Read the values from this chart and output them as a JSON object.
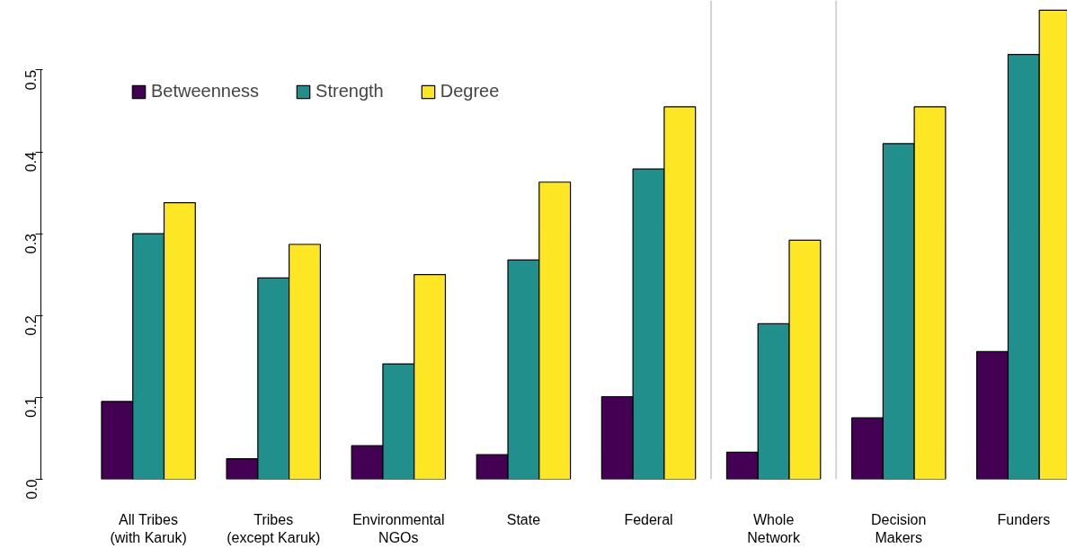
{
  "chart_data": {
    "type": "bar",
    "categories": [
      "All Tribes\n(with Karuk)",
      "Tribes\n(except Karuk)",
      "Environmental\nNGOs",
      "State",
      "Federal",
      "Whole\nNetwork",
      "Decision\nMakers",
      "Funders"
    ],
    "series": [
      {
        "name": "Betweenness",
        "color": "#440154",
        "values": [
          0.095,
          0.025,
          0.041,
          0.03,
          0.101,
          0.033,
          0.075,
          0.156
        ]
      },
      {
        "name": "Strength",
        "color": "#21908c",
        "values": [
          0.3,
          0.246,
          0.141,
          0.268,
          0.379,
          0.19,
          0.41,
          0.519
        ]
      },
      {
        "name": "Degree",
        "color": "#fde725",
        "values": [
          0.338,
          0.287,
          0.25,
          0.363,
          0.455,
          0.292,
          0.455,
          0.573
        ]
      }
    ],
    "ylim": [
      0,
      0.585
    ],
    "yticks": [
      {
        "value": 0,
        "label": "0.0"
      },
      {
        "value": 0.1,
        "label": "0.1"
      },
      {
        "value": 0.2,
        "label": "0.2"
      },
      {
        "value": 0.3,
        "label": "0.3"
      },
      {
        "value": 0.4,
        "label": "0.4"
      },
      {
        "value": 0.5,
        "label": "0.5"
      }
    ],
    "legend": "top left",
    "grid": false
  }
}
